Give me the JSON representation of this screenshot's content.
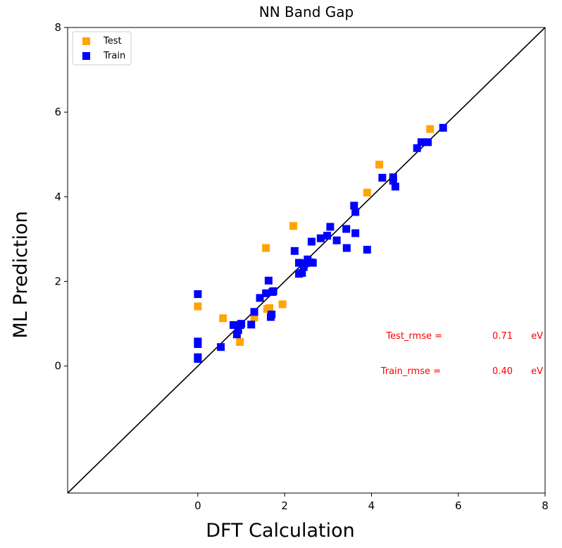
{
  "chart_data": {
    "type": "scatter",
    "title": "NN Band Gap",
    "xlabel": "DFT Calculation",
    "ylabel": "ML Prediction",
    "xlim": [
      -3,
      8
    ],
    "ylim": [
      -3,
      8
    ],
    "xticks": [
      0,
      2,
      4,
      6,
      8
    ],
    "yticks": [
      0,
      2,
      4,
      6,
      8
    ],
    "legend_position": "top-left",
    "series": [
      {
        "name": "Test",
        "color": "#ffa500",
        "marker": "square",
        "points": [
          [
            0.0,
            1.41
          ],
          [
            0.58,
            1.13
          ],
          [
            0.97,
            0.57
          ],
          [
            1.3,
            1.15
          ],
          [
            1.57,
            2.79
          ],
          [
            1.6,
            1.35
          ],
          [
            1.65,
            1.37
          ],
          [
            1.95,
            1.46
          ],
          [
            2.2,
            3.31
          ],
          [
            3.9,
            4.1
          ],
          [
            4.18,
            4.76
          ],
          [
            5.35,
            5.6
          ]
        ]
      },
      {
        "name": "Train",
        "color": "#0000ff",
        "marker": "square",
        "points": [
          [
            0.0,
            1.7
          ],
          [
            0.0,
            0.58
          ],
          [
            0.0,
            0.52
          ],
          [
            0.0,
            0.21
          ],
          [
            0.0,
            0.17
          ],
          [
            0.53,
            0.45
          ],
          [
            0.82,
            0.97
          ],
          [
            0.9,
            0.75
          ],
          [
            0.93,
            0.85
          ],
          [
            0.98,
            0.97
          ],
          [
            1.0,
            1.0
          ],
          [
            1.23,
            0.98
          ],
          [
            1.3,
            1.28
          ],
          [
            1.43,
            1.61
          ],
          [
            1.57,
            1.72
          ],
          [
            1.63,
            2.02
          ],
          [
            1.68,
            1.16
          ],
          [
            1.7,
            1.22
          ],
          [
            1.72,
            1.75
          ],
          [
            1.74,
            1.77
          ],
          [
            2.23,
            2.72
          ],
          [
            2.33,
            2.44
          ],
          [
            2.33,
            2.18
          ],
          [
            2.4,
            2.2
          ],
          [
            2.44,
            2.34
          ],
          [
            2.48,
            2.43
          ],
          [
            2.53,
            2.52
          ],
          [
            2.6,
            2.45
          ],
          [
            2.62,
            2.94
          ],
          [
            2.65,
            2.44
          ],
          [
            2.83,
            3.02
          ],
          [
            2.98,
            3.08
          ],
          [
            3.05,
            3.29
          ],
          [
            3.2,
            2.97
          ],
          [
            3.42,
            3.24
          ],
          [
            3.43,
            2.79
          ],
          [
            3.6,
            3.79
          ],
          [
            3.63,
            3.64
          ],
          [
            3.63,
            3.14
          ],
          [
            3.9,
            2.75
          ],
          [
            4.25,
            4.45
          ],
          [
            4.5,
            4.46
          ],
          [
            4.5,
            4.38
          ],
          [
            4.55,
            4.24
          ],
          [
            5.05,
            5.15
          ],
          [
            5.15,
            5.29
          ],
          [
            5.3,
            5.29
          ],
          [
            5.65,
            5.63
          ]
        ]
      }
    ],
    "reference_line": {
      "from": [
        -3,
        -3
      ],
      "to": [
        8,
        8
      ],
      "color": "#000000"
    },
    "annotations": [
      {
        "label": "Test_rmse =",
        "value": "0.71",
        "unit": "eV",
        "color": "#ff0000"
      },
      {
        "label": "Train_rmse =",
        "value": "0.40",
        "unit": "eV",
        "color": "#ff0000"
      }
    ]
  }
}
